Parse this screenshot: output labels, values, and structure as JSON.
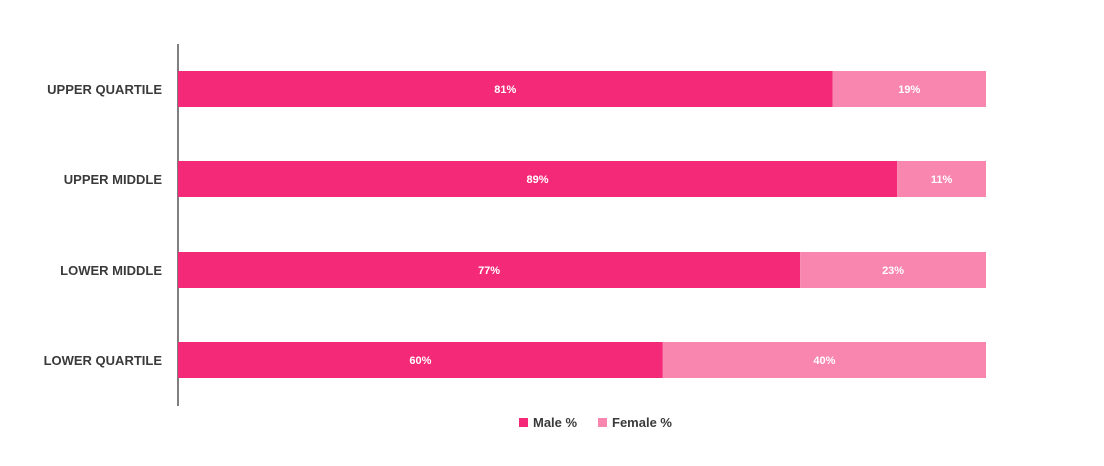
{
  "chart_data": {
    "type": "bar",
    "orientation": "horizontal",
    "stacked": true,
    "categories": [
      "UPPER QUARTILE",
      "UPPER MIDDLE",
      "LOWER MIDDLE",
      "LOWER QUARTILE"
    ],
    "series": [
      {
        "name": "Male %",
        "values": [
          81,
          89,
          77,
          60
        ],
        "labels": [
          "81%",
          "89%",
          "77%",
          "60%"
        ],
        "color": "#F42A78"
      },
      {
        "name": "Female %",
        "values": [
          19,
          11,
          23,
          40
        ],
        "labels": [
          "19%",
          "11%",
          "23%",
          "40%"
        ],
        "color": "#F886AF"
      }
    ],
    "xlim": [
      0,
      100
    ],
    "title": "",
    "xlabel": "",
    "ylabel": "",
    "grid": false,
    "legend_position": "bottom"
  }
}
